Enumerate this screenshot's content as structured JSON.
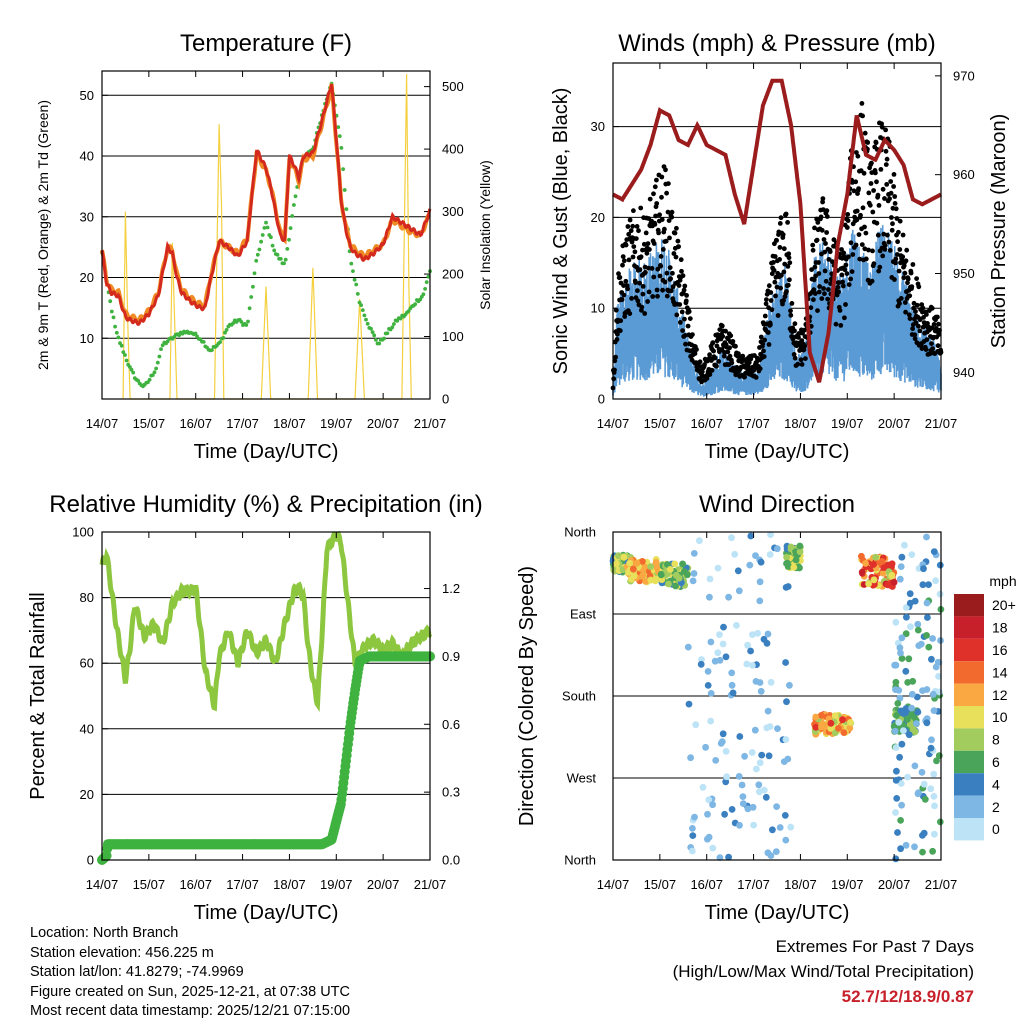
{
  "chart_data": [
    {
      "type": "line",
      "title": "Temperature (F)",
      "xlabel": "Time (Day/UTC)",
      "ylabel": "2m & 9m T (Red, Orange) & 2m Td (Green)",
      "y2label": "Solar Insolation (Yellow)",
      "categories": [
        "14/07",
        "15/07",
        "16/07",
        "17/07",
        "18/07",
        "19/07",
        "20/07",
        "21/07"
      ],
      "ylim": [
        0,
        54
      ],
      "yticks": [
        10,
        20,
        30,
        40,
        50
      ],
      "y2lim": [
        0,
        525
      ],
      "y2ticks": [
        0,
        100,
        200,
        300,
        400,
        500
      ],
      "series": [
        {
          "name": "2m T",
          "color": "#d42a1e",
          "x": [
            0,
            0.1,
            0.2,
            0.35,
            0.5,
            0.6,
            0.8,
            1,
            1.2,
            1.4,
            1.5,
            1.6,
            1.7,
            1.9,
            2.1,
            2.2,
            2.3,
            2.5,
            2.7,
            2.9,
            3.1,
            3.3,
            3.5,
            3.6,
            3.7,
            3.8,
            3.9,
            4.0,
            4.1,
            4.2,
            4.3,
            4.5,
            4.7,
            4.9,
            5.0,
            5.1,
            5.2,
            5.3,
            5.4,
            5.6,
            5.8,
            6.0,
            6.2,
            6.4,
            6.6,
            6.8,
            7.0
          ],
          "y": [
            24.5,
            19,
            17.5,
            17,
            13.5,
            13,
            12.5,
            14,
            17,
            25,
            24,
            20,
            17.5,
            16,
            15,
            15,
            19,
            26,
            25,
            23.5,
            26,
            41,
            38,
            35,
            31,
            27,
            26,
            40,
            38.5,
            36.5,
            40,
            40.5,
            46,
            52,
            43,
            33,
            28,
            25,
            24,
            23,
            24,
            25.5,
            30,
            29,
            28,
            27,
            31
          ]
        },
        {
          "name": "9m T",
          "color": "#f08a24",
          "x": [
            0,
            0.1,
            0.2,
            0.35,
            0.5,
            0.6,
            0.8,
            1,
            1.2,
            1.4,
            1.5,
            1.6,
            1.7,
            1.9,
            2.1,
            2.2,
            2.3,
            2.5,
            2.7,
            2.9,
            3.1,
            3.3,
            3.5,
            3.6,
            3.7,
            3.8,
            3.9,
            4.0,
            4.1,
            4.2,
            4.3,
            4.5,
            4.7,
            4.9,
            5.0,
            5.1,
            5.2,
            5.3,
            5.4,
            5.6,
            5.8,
            6.0,
            6.2,
            6.4,
            6.6,
            6.8,
            7.0
          ],
          "y": [
            24.5,
            19.5,
            18,
            17.5,
            14,
            13.5,
            13,
            14.5,
            17.5,
            25,
            24.5,
            20.5,
            18,
            16.5,
            15.5,
            15.5,
            19.5,
            26,
            25,
            24,
            26.5,
            40.5,
            37.5,
            35,
            31.5,
            27.5,
            26.5,
            39.5,
            38,
            36,
            39.5,
            40,
            45.5,
            51.5,
            42.5,
            33,
            28.5,
            25.5,
            24.5,
            23.5,
            24.5,
            25.5,
            29.5,
            28.5,
            27.5,
            27,
            30.5
          ]
        },
        {
          "name": "2m Td",
          "color": "#3fb23f",
          "x": [
            0,
            0.15,
            0.3,
            0.45,
            0.6,
            0.75,
            0.9,
            1.0,
            1.15,
            1.3,
            1.5,
            1.7,
            1.9,
            2.1,
            2.3,
            2.5,
            2.7,
            2.9,
            3.1,
            3.3,
            3.5,
            3.7,
            3.9,
            4.1,
            4.3,
            4.5,
            4.7,
            4.9,
            5.1,
            5.3,
            5.5,
            5.7,
            5.9,
            6.1,
            6.3,
            6.5,
            6.7,
            6.85,
            7.0
          ],
          "y": [
            24,
            17,
            11,
            8,
            5,
            3,
            2,
            3,
            5,
            9,
            10,
            11,
            11,
            10,
            8,
            9,
            12,
            13,
            12,
            23,
            29,
            24,
            22,
            32,
            40,
            41,
            47,
            52,
            42,
            23,
            16,
            12,
            9,
            11,
            13,
            14,
            16,
            17,
            21
          ]
        },
        {
          "name": "Solar Insolation",
          "color": "#f4d03f",
          "axis": "y2",
          "x": [
            0.45,
            0.5,
            0.55,
            0.6,
            1.45,
            1.5,
            1.6,
            2.4,
            2.5,
            2.55,
            2.6,
            3.4,
            3.5,
            3.6,
            4.4,
            4.5,
            4.6,
            5.4,
            5.5,
            5.6,
            6.4,
            6.5,
            6.55,
            6.6
          ],
          "y": [
            0,
            300,
            120,
            0,
            0,
            250,
            0,
            0,
            440,
            310,
            0,
            0,
            180,
            0,
            0,
            210,
            0,
            0,
            160,
            0,
            0,
            520,
            180,
            0
          ]
        }
      ]
    },
    {
      "type": "scatter",
      "title": "Winds (mph) & Pressure (mb)",
      "xlabel": "Time (Day/UTC)",
      "ylabel": "Sonic Wind & Gust (Blue, Black)",
      "y2label": "Station Pressure (Maroon)",
      "categories": [
        "14/07",
        "15/07",
        "16/07",
        "17/07",
        "18/07",
        "19/07",
        "20/07",
        "21/07"
      ],
      "ylim": [
        0,
        37
      ],
      "yticks": [
        0,
        10,
        20,
        30
      ],
      "y2lim": [
        937.3,
        971.3
      ],
      "y2ticks": [
        940,
        950,
        960,
        970
      ],
      "series": [
        {
          "name": "Sonic Wind",
          "color": "#5b9bd5",
          "x": [
            0,
            0.1,
            0.3,
            0.5,
            0.7,
            0.9,
            1.1,
            1.3,
            1.5,
            1.7,
            1.9,
            2.1,
            2.3,
            2.5,
            2.7,
            2.9,
            3.1,
            3.3,
            3.5,
            3.7,
            3.9,
            4.1,
            4.3,
            4.5,
            4.7,
            4.9,
            5.1,
            5.3,
            5.5,
            5.7,
            5.9,
            6.1,
            6.3,
            6.5,
            6.7,
            6.9,
            7.0
          ],
          "y": [
            1,
            7,
            9,
            10,
            10,
            11,
            12,
            9,
            6,
            3,
            1,
            2,
            4,
            3,
            2,
            2,
            2,
            6,
            9,
            10,
            3,
            4,
            10,
            12,
            10,
            9,
            13,
            11,
            9,
            13,
            12,
            10,
            8,
            6,
            5,
            4,
            3
          ]
        },
        {
          "name": "Gust",
          "color": "#000000",
          "x": [
            0,
            0.1,
            0.3,
            0.5,
            0.7,
            0.9,
            1.1,
            1.3,
            1.5,
            1.7,
            1.9,
            2.1,
            2.3,
            2.5,
            2.7,
            2.9,
            3.1,
            3.3,
            3.5,
            3.7,
            3.9,
            4.1,
            4.3,
            4.5,
            4.7,
            4.9,
            5.1,
            5.3,
            5.5,
            5.7,
            5.9,
            6.1,
            6.3,
            6.5,
            6.7,
            6.9,
            7.0
          ],
          "y": [
            2,
            12,
            16,
            18,
            17,
            20,
            22,
            17,
            12,
            6,
            3,
            5,
            7,
            6,
            4,
            4,
            4,
            10,
            16,
            18,
            6,
            7,
            16,
            19,
            15,
            14,
            24,
            28,
            22,
            26,
            24,
            17,
            14,
            11,
            9,
            8,
            6
          ]
        },
        {
          "name": "Station Pressure",
          "color": "#9b1c1c",
          "axis": "y2",
          "x": [
            0,
            0.2,
            0.4,
            0.6,
            0.8,
            1.0,
            1.2,
            1.4,
            1.6,
            1.8,
            2.0,
            2.2,
            2.4,
            2.6,
            2.8,
            3.0,
            3.2,
            3.4,
            3.6,
            3.8,
            4.0,
            4.2,
            4.4,
            4.6,
            4.8,
            5.0,
            5.2,
            5.4,
            5.6,
            5.8,
            6.0,
            6.2,
            6.4,
            6.6,
            6.8,
            7.0
          ],
          "y": [
            958,
            957.5,
            959,
            960.5,
            963,
            966.5,
            966,
            963.5,
            963,
            965,
            963,
            962.5,
            962,
            958,
            955,
            961,
            967,
            969.5,
            969.5,
            965,
            957,
            942,
            939,
            944,
            953,
            958,
            966,
            962,
            961.5,
            963.5,
            962.5,
            961,
            957.5,
            957,
            957.5,
            958
          ]
        }
      ]
    },
    {
      "type": "line",
      "title": "Relative Humidity (%) & Precipitation (in)",
      "xlabel": "Time (Day/UTC)",
      "ylabel": "Percent & Total Rainfall",
      "categories": [
        "14/07",
        "15/07",
        "16/07",
        "17/07",
        "18/07",
        "19/07",
        "20/07",
        "21/07"
      ],
      "ylim": [
        0,
        100
      ],
      "yticks": [
        0,
        20,
        40,
        60,
        80,
        100
      ],
      "y2lim": [
        0,
        1.45
      ],
      "y2ticks": [
        "0.0",
        "0.3",
        "0.6",
        "0.9",
        "1.2"
      ],
      "series": [
        {
          "name": "Relative Humidity",
          "color": "#8dc63f",
          "x": [
            0,
            0.1,
            0.3,
            0.5,
            0.6,
            0.7,
            0.9,
            1.1,
            1.3,
            1.5,
            1.7,
            1.9,
            2.0,
            2.2,
            2.4,
            2.5,
            2.7,
            2.9,
            3.1,
            3.3,
            3.5,
            3.7,
            3.9,
            4.1,
            4.2,
            4.3,
            4.4,
            4.5,
            4.6,
            4.7,
            4.8,
            5.0,
            5.1,
            5.3,
            5.4,
            5.6,
            5.8,
            6.0,
            6.2,
            6.4,
            6.6,
            6.8,
            7.0
          ],
          "y": [
            90,
            93,
            72,
            55,
            65,
            78,
            68,
            72,
            66,
            78,
            82,
            82,
            83,
            58,
            47,
            62,
            70,
            60,
            70,
            63,
            67,
            60,
            72,
            82,
            83,
            80,
            65,
            55,
            48,
            70,
            95,
            99,
            97,
            72,
            60,
            65,
            67,
            64,
            66,
            62,
            66,
            68,
            70
          ]
        },
        {
          "name": "Total Rainfall",
          "color": "#3fb23f",
          "axis": "y2",
          "x": [
            0,
            0.1,
            0.12,
            1,
            2,
            3,
            4,
            4.7,
            4.9,
            5.1,
            5.3,
            5.4,
            5.5,
            5.7,
            6,
            7
          ],
          "y": [
            0,
            0.02,
            0.07,
            0.07,
            0.07,
            0.07,
            0.07,
            0.07,
            0.09,
            0.25,
            0.6,
            0.75,
            0.88,
            0.9,
            0.9,
            0.9
          ]
        }
      ]
    },
    {
      "type": "scatter",
      "title": "Wind Direction",
      "xlabel": "Time (Day/UTC)",
      "ylabel": "Direction (Colored By Speed)",
      "categories": [
        "14/07",
        "15/07",
        "16/07",
        "17/07",
        "18/07",
        "19/07",
        "20/07",
        "21/07"
      ],
      "yticks": [
        "North",
        "West",
        "South",
        "East",
        "North"
      ],
      "ylim": [
        0,
        360
      ],
      "legend_title": "mph",
      "legend_labels": [
        "20+",
        "18",
        "16",
        "14",
        "12",
        "10",
        "8",
        "6",
        "4",
        "2",
        "0"
      ],
      "legend_colors": [
        "#9b1c1c",
        "#c8202a",
        "#e0302a",
        "#f26a2e",
        "#f9a842",
        "#e8e05a",
        "#a3cc5f",
        "#4aa55a",
        "#3a80c0",
        "#7eb6e4",
        "#bde3f6"
      ],
      "clusters": [
        {
          "x": [
            0.0,
            0.4
          ],
          "dir": [
            315,
            335
          ],
          "speed": [
            4,
            10
          ]
        },
        {
          "x": [
            0.3,
            1.0
          ],
          "dir": [
            305,
            330
          ],
          "speed": [
            8,
            14
          ]
        },
        {
          "x": [
            1.0,
            1.6
          ],
          "dir": [
            300,
            325
          ],
          "speed": [
            4,
            10
          ]
        },
        {
          "x": [
            1.6,
            3.8
          ],
          "dir": [
            0,
            360
          ],
          "speed": [
            0,
            4
          ]
        },
        {
          "x": [
            3.7,
            4.0
          ],
          "dir": [
            320,
            345
          ],
          "speed": [
            4,
            10
          ]
        },
        {
          "x": [
            4.3,
            5.1
          ],
          "dir": [
            138,
            160
          ],
          "speed": [
            8,
            16
          ]
        },
        {
          "x": [
            5.3,
            6.0
          ],
          "dir": [
            300,
            335
          ],
          "speed": [
            8,
            18
          ]
        },
        {
          "x": [
            6.0,
            6.5
          ],
          "dir": [
            140,
            165
          ],
          "speed": [
            4,
            8
          ]
        },
        {
          "x": [
            6.0,
            7.0
          ],
          "dir": [
            0,
            360
          ],
          "speed": [
            0,
            6
          ]
        }
      ]
    }
  ],
  "info": {
    "location": "Location: North Branch",
    "elevation": "Station elevation: 456.225 m",
    "latlon": "Station lat/lon: 41.8279; -74.9969",
    "created": "Figure created on Sun, 2025-12-21, at 07:38 UTC",
    "recent": "Most recent data timestamp: 2025/12/21 07:15:00"
  },
  "extremes": {
    "title": "Extremes For Past 7 Days",
    "subtitle": "(High/Low/Max Wind/Total Precipitation)",
    "value": "52.7/12/18.9/0.87"
  }
}
